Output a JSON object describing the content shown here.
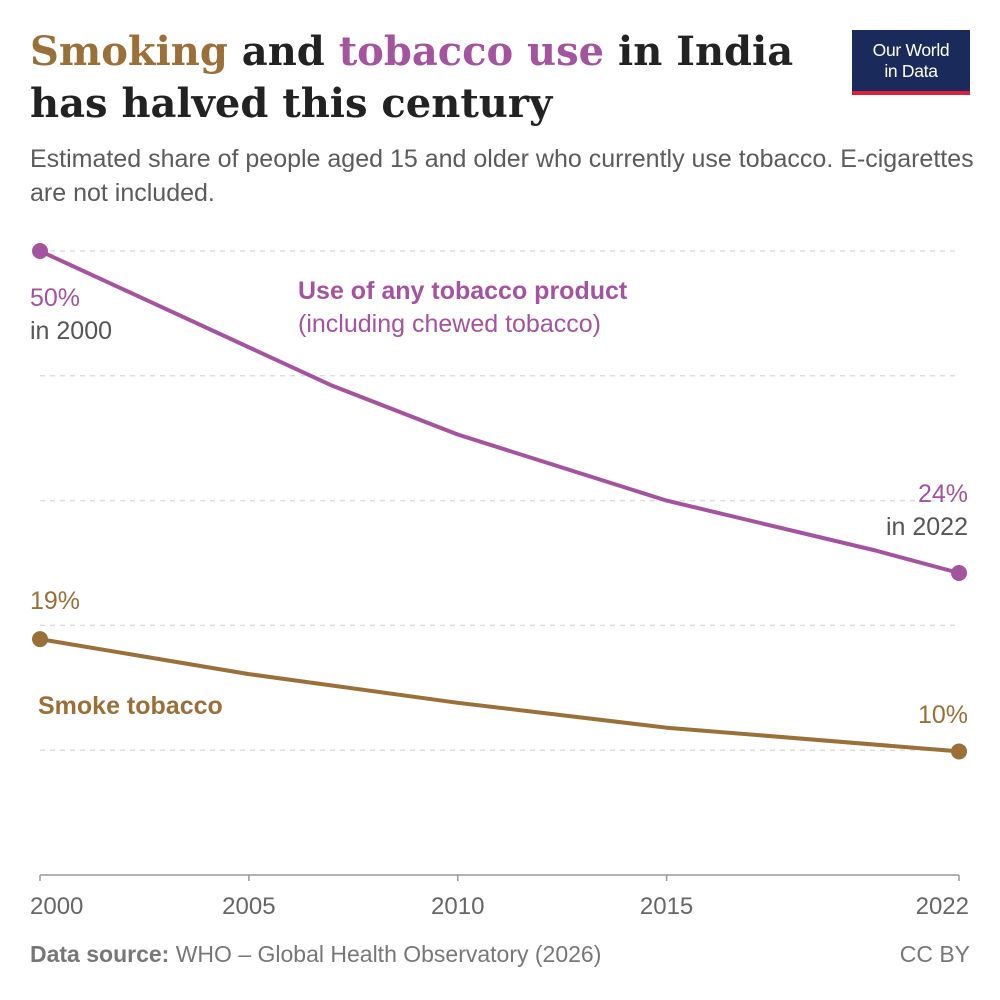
{
  "header": {
    "title_parts": [
      {
        "text": "Smoking",
        "color": "#9a6f38"
      },
      {
        "text": " and ",
        "color": "#222222"
      },
      {
        "text": "tobacco use",
        "color": "#a4539f"
      },
      {
        "text": " in India has halved this century",
        "color": "#222222"
      }
    ],
    "subtitle": "Estimated share of people aged 15 and older who currently use tobacco. E-cigarettes are not included."
  },
  "logo": {
    "line1": "Our World",
    "line2": "in Data"
  },
  "footer": {
    "source_label": "Data source:",
    "source_text": " WHO – Global Health Observatory (2026)",
    "license": "CC BY"
  },
  "colors": {
    "tobacco": "#a4539f",
    "smoke": "#9a6f38",
    "grid": "#dddddd",
    "text_dark": "#555555"
  },
  "chart_data": {
    "type": "line",
    "x_ticks": [
      2000,
      2005,
      2010,
      2015,
      2022
    ],
    "xlim": [
      2000,
      2022
    ],
    "ylim": [
      0,
      50
    ],
    "y_gridlines": [
      10,
      20,
      30,
      40,
      50
    ],
    "series": [
      {
        "key": "tobacco",
        "name": "Use of any tobacco product",
        "name_note": "(including chewed tobacco)",
        "x": [
          2000,
          2007,
          2010,
          2015,
          2020,
          2022
        ],
        "values": [
          50,
          39.2,
          35.3,
          30,
          26,
          24.2
        ]
      },
      {
        "key": "smoke",
        "name": "Smoke tobacco",
        "x": [
          2000,
          2005,
          2010,
          2015,
          2022
        ],
        "values": [
          18.9,
          16.1,
          13.8,
          11.8,
          9.9
        ]
      }
    ],
    "labels": {
      "tobacco_start_value": "50%",
      "tobacco_start_year": "in 2000",
      "tobacco_end_value": "24%",
      "tobacco_end_year": "in 2022",
      "smoke_start_value": "19%",
      "smoke_end_value": "10%"
    }
  }
}
